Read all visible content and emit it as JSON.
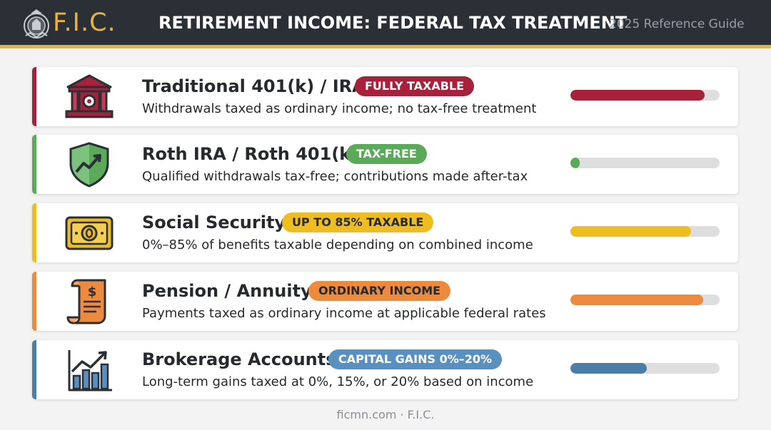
{
  "header": {
    "brand": "F.I.C.",
    "title": "RETIREMENT INCOME: FEDERAL TAX TREATMENT",
    "subtitle": "2025 Reference Guide",
    "colors": {
      "background": "#2b2f36",
      "accent": "#e7b53b"
    }
  },
  "accounts": [
    {
      "name": "Traditional 401(k) / IRA",
      "badge": "FULLY TAXABLE",
      "description": "Withdrawals taxed as ordinary income; no tax-free treatment",
      "icon": "bank-building-icon",
      "color": "#a8203a",
      "badge_bg": "#a8203a",
      "badge_text_color": "#ffffff",
      "tax_level": 0.9
    },
    {
      "name": "Roth IRA / Roth 401(k)",
      "badge": "TAX-FREE",
      "description": "Qualified withdrawals tax-free; contributions made after-tax",
      "icon": "shield-growth-icon",
      "color": "#5aaa5a",
      "badge_bg": "#5aaa5a",
      "badge_text_color": "#ffffff",
      "tax_level": 0.06
    },
    {
      "name": "Social Security",
      "badge": "UP TO 85% TAXABLE",
      "description": "0%–85% of benefits taxable depending on combined income",
      "icon": "banknote-icon",
      "color": "#f0bd1f",
      "badge_bg": "#f0bd1f",
      "badge_text_color": "#26292e",
      "tax_level": 0.81
    },
    {
      "name": "Pension / Annuity",
      "badge": "ORDINARY INCOME",
      "description": "Payments taxed as ordinary income at applicable federal rates",
      "icon": "document-scroll-icon",
      "color": "#ee8a3e",
      "badge_bg": "#ee8a3e",
      "badge_text_color": "#26292e",
      "tax_level": 0.89
    },
    {
      "name": "Brokerage Accounts",
      "badge": "CAPITAL GAINS 0%–20%",
      "description": "Long-term gains taxed at 0%, 15%, or 20% based on income",
      "icon": "bar-chart-growth-icon",
      "color": "#4a7ea8",
      "badge_bg": "#5a90c0",
      "badge_text_color": "#ffffff",
      "tax_level": 0.51
    }
  ],
  "footer": {
    "text": "ficmn.com · F.I.C."
  }
}
